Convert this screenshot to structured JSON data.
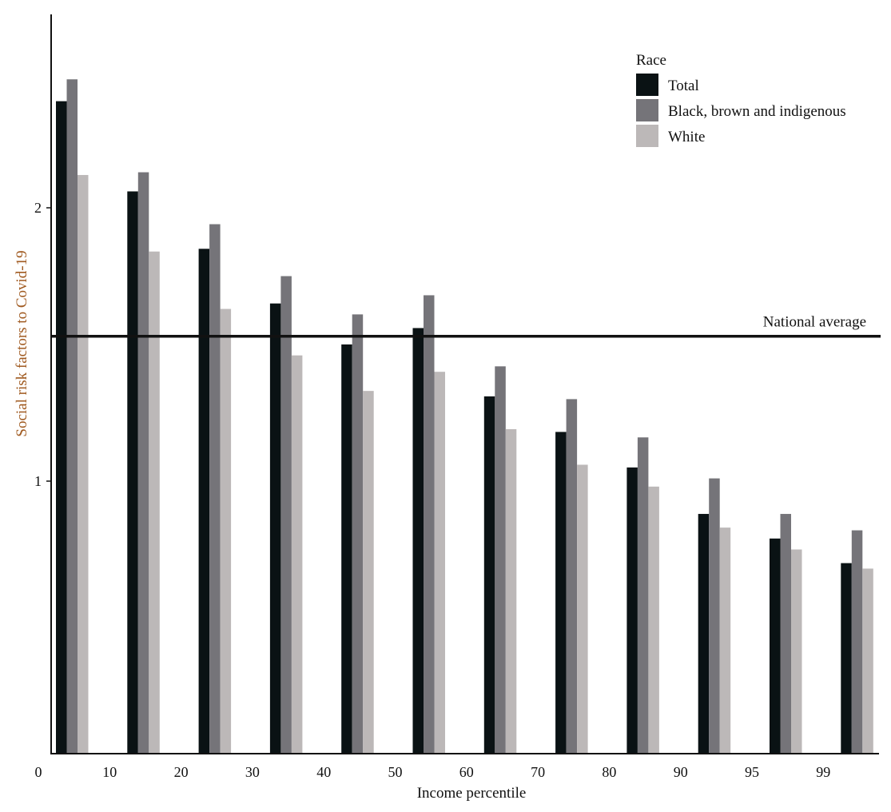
{
  "chart_data": {
    "type": "bar",
    "title": "",
    "xlabel": "Income percentile",
    "ylabel": "Social risk factors to Covid-19",
    "x_tick_labels": [
      "0",
      "10",
      "20",
      "30",
      "40",
      "50",
      "60",
      "70",
      "80",
      "90",
      "95",
      "99"
    ],
    "y_ticks": [
      1,
      2
    ],
    "ylim": [
      0,
      2.7
    ],
    "grid": false,
    "legend": {
      "title": "Race",
      "placement": "top-right"
    },
    "reference_line": {
      "label": "National average",
      "value": 1.53
    },
    "series": [
      {
        "name": "Total",
        "color": "#0a1214",
        "values": [
          2.39,
          2.06,
          1.85,
          1.65,
          1.5,
          1.56,
          1.31,
          1.18,
          1.05,
          0.88,
          0.79,
          0.7
        ]
      },
      {
        "name": "Black, brown and indigenous",
        "color": "#757479",
        "values": [
          2.47,
          2.13,
          1.94,
          1.75,
          1.61,
          1.68,
          1.42,
          1.3,
          1.16,
          1.01,
          0.88,
          0.82
        ]
      },
      {
        "name": "White",
        "color": "#bcb8b8",
        "values": [
          2.12,
          1.84,
          1.63,
          1.46,
          1.33,
          1.4,
          1.19,
          1.06,
          0.98,
          0.83,
          0.75,
          0.68
        ]
      }
    ]
  }
}
